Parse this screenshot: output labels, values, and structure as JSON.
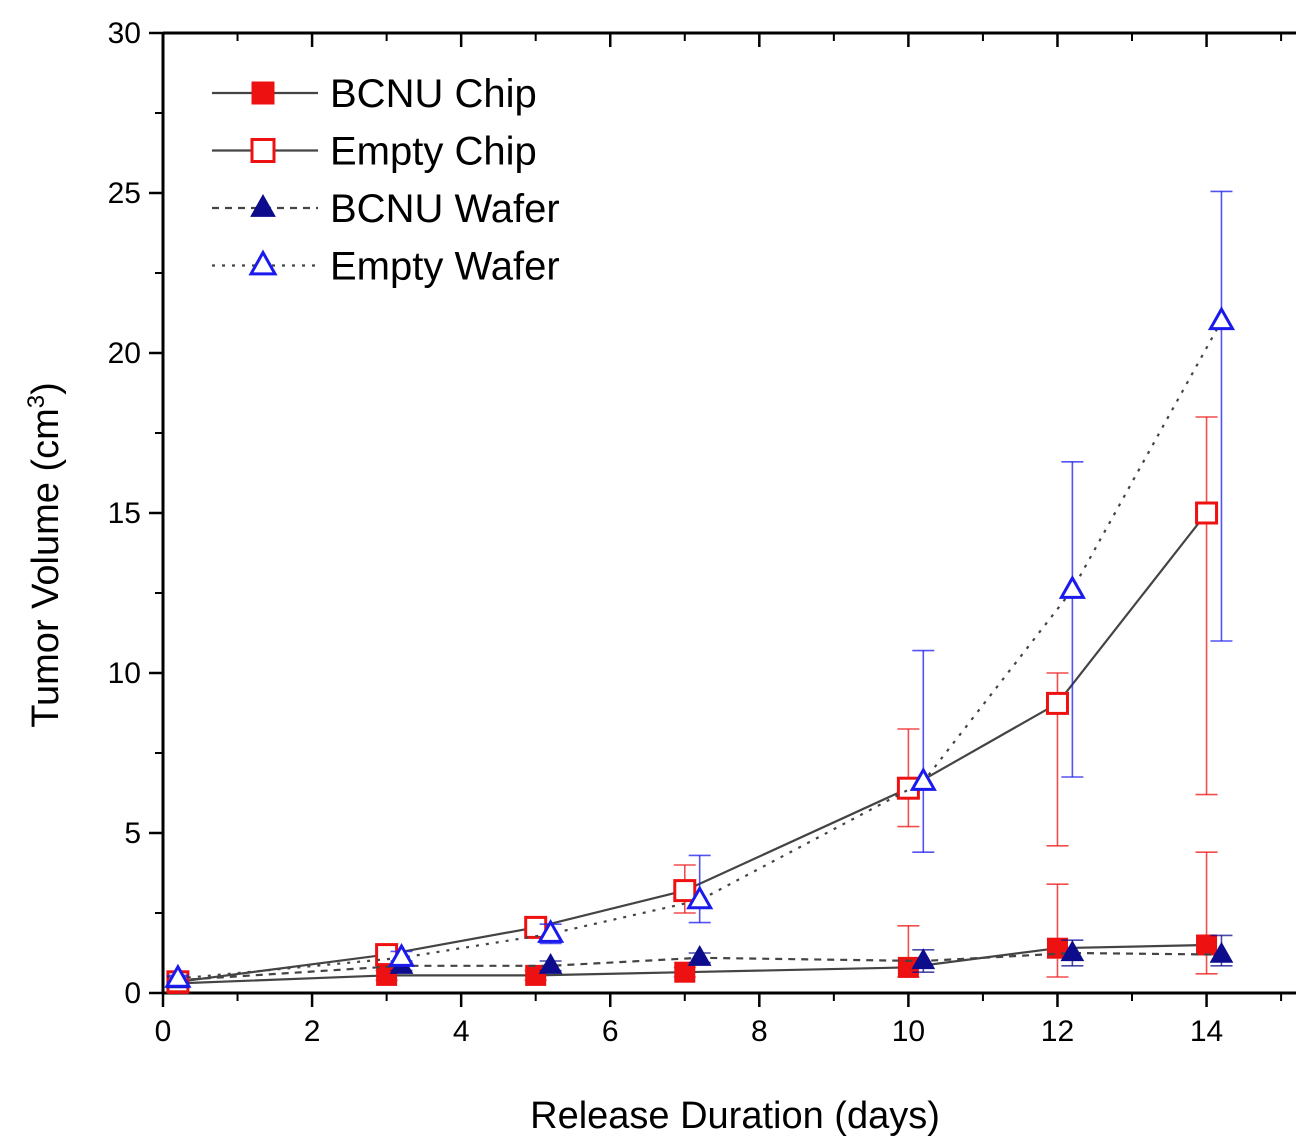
{
  "chart_data": {
    "type": "line",
    "xlabel": "Release Duration (days)",
    "ylabel_main": "Tumor Volume (cm",
    "ylabel_sup": "3",
    "ylabel_close": ")",
    "xlim": [
      0,
      15.2
    ],
    "ylim": [
      0,
      30
    ],
    "xticks": [
      0,
      2,
      4,
      6,
      8,
      10,
      12,
      14
    ],
    "yticks": [
      0,
      5,
      10,
      15,
      20,
      25,
      30
    ],
    "grid": false,
    "legend_position": "top-left",
    "series": [
      {
        "name": "BCNU Chip",
        "color": "#ee1111",
        "line_color": "#444444",
        "line_style": "solid",
        "marker": "square-filled",
        "x": [
          0.2,
          3,
          5,
          7,
          10,
          12,
          14
        ],
        "y": [
          0.3,
          0.55,
          0.55,
          0.65,
          0.8,
          1.4,
          1.5
        ],
        "err_low": [
          0.1,
          0.15,
          0.15,
          0.15,
          0.3,
          0.9,
          0.9
        ],
        "err_high": [
          0.1,
          0.15,
          0.15,
          0.15,
          1.3,
          2.0,
          2.9
        ]
      },
      {
        "name": "Empty Chip",
        "color": "#ee1111",
        "line_color": "#444444",
        "line_style": "solid",
        "marker": "square-open",
        "x": [
          0.2,
          3,
          5,
          7,
          10,
          12,
          14
        ],
        "y": [
          0.35,
          1.2,
          2.05,
          3.2,
          6.4,
          9.05,
          15.0
        ],
        "err_low": [
          0.1,
          0.2,
          0.3,
          0.7,
          1.2,
          4.45,
          8.8
        ],
        "err_high": [
          0.1,
          0.2,
          0.3,
          0.8,
          1.85,
          0.95,
          3.0
        ]
      },
      {
        "name": "BCNU Wafer",
        "color": "#0c0c8c",
        "line_color": "#444444",
        "line_style": "dashed",
        "marker": "triangle-filled",
        "x": [
          0.2,
          3.2,
          5.2,
          7.2,
          10.2,
          12.2,
          14.2
        ],
        "y": [
          0.4,
          0.85,
          0.85,
          1.1,
          1.0,
          1.25,
          1.2
        ],
        "err_low": [
          0.1,
          0.15,
          0.15,
          0.15,
          0.35,
          0.4,
          0.35
        ],
        "err_high": [
          0.1,
          0.15,
          0.15,
          0.15,
          0.35,
          0.4,
          0.6
        ]
      },
      {
        "name": "Empty Wafer",
        "color": "#1a1aee",
        "line_color": "#444444",
        "line_style": "dotted",
        "marker": "triangle-open",
        "x": [
          0.2,
          3.2,
          5.2,
          7.2,
          10.2,
          12.2,
          14.2
        ],
        "y": [
          0.45,
          1.1,
          1.85,
          2.9,
          6.6,
          12.6,
          21.0
        ],
        "err_low": [
          0.1,
          0.2,
          0.3,
          0.7,
          2.2,
          5.85,
          10.0
        ],
        "err_high": [
          0.1,
          0.2,
          0.3,
          1.4,
          4.1,
          4.0,
          4.05
        ]
      }
    ]
  }
}
